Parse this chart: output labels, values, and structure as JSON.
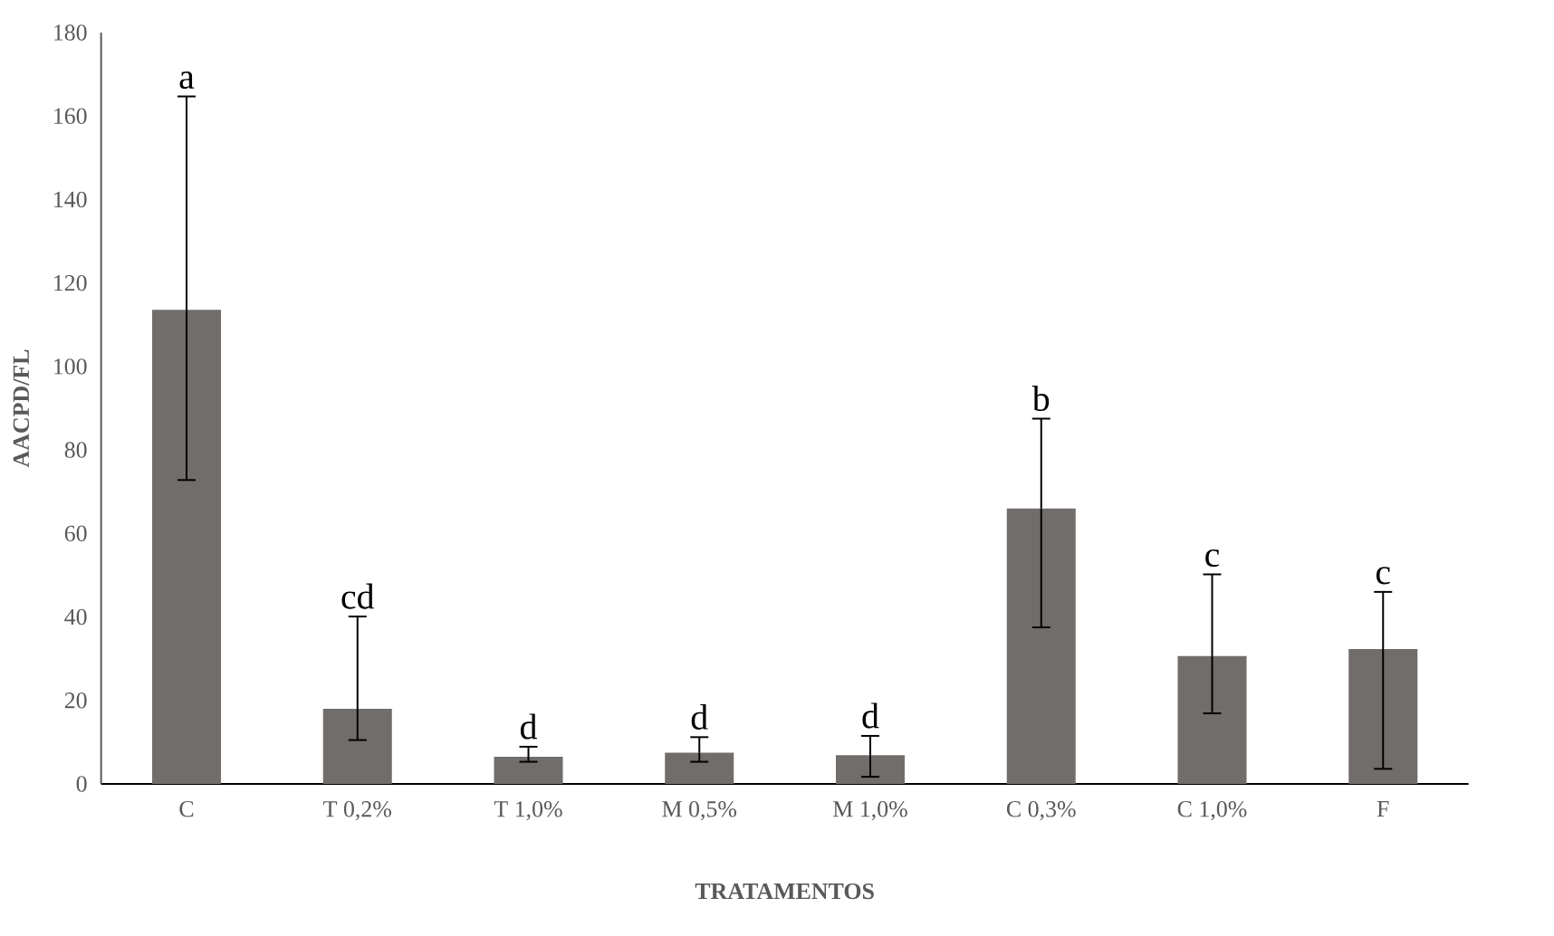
{
  "chart_data": {
    "type": "bar",
    "xlabel": "TRATAMENTOS",
    "ylabel": "AACPD/FL",
    "categories": [
      "C",
      "T 0,2%",
      "T 1,0%",
      "M 0,5%",
      "M 1,0%",
      "C 0,3%",
      "C 1,0%",
      "F"
    ],
    "values": [
      113.6,
      18.0,
      6.5,
      7.5,
      6.9,
      66.0,
      30.6,
      32.3
    ],
    "errors": [
      [
        72.8,
        164.7
      ],
      [
        10.5,
        40.1
      ],
      [
        5.3,
        8.9
      ],
      [
        5.3,
        11.2
      ],
      [
        1.7,
        11.5
      ],
      [
        37.5,
        87.5
      ],
      [
        16.9,
        50.2
      ],
      [
        3.6,
        46.0
      ]
    ],
    "color": "#716d6b",
    "ylim": [
      0,
      180
    ],
    "yticks": [
      0,
      20,
      40,
      60,
      80,
      100,
      120,
      140,
      160,
      180
    ],
    "annotations": [
      {
        "text": "a",
        "x": "C",
        "y": 164.7
      },
      {
        "text": "cd",
        "x": "T 0,2%",
        "y": 40.1
      },
      {
        "text": "d",
        "x": "T 1,0%",
        "y": 8.9
      },
      {
        "text": "d",
        "x": "M 0,5%",
        "y": 11.2
      },
      {
        "text": "d",
        "x": "M 1,0%",
        "y": 11.5
      },
      {
        "text": "b",
        "x": "C 0,3%",
        "y": 87.5
      },
      {
        "text": "c",
        "x": "C 1,0%",
        "y": 50.2
      },
      {
        "text": "c",
        "x": "F",
        "y": 46.0
      }
    ]
  }
}
